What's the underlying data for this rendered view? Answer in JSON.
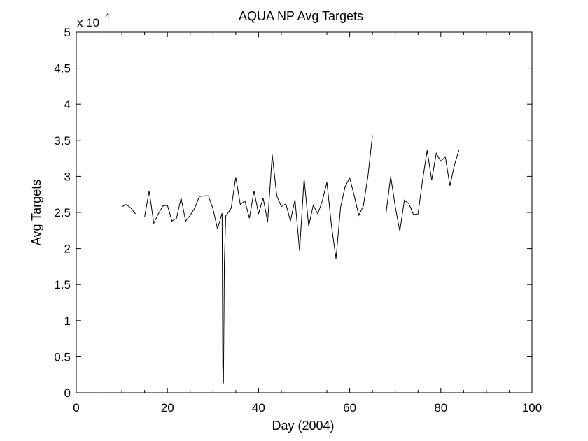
{
  "chart_data": {
    "type": "line",
    "title": "AQUA NP Avg Targets",
    "xlabel": "Day (2004)",
    "ylabel": "Avg Targets",
    "y_multiplier_label": "x 10",
    "y_multiplier_exponent": "4",
    "xlim": [
      0,
      100
    ],
    "ylim": [
      0,
      5
    ],
    "x_ticks": [
      0,
      20,
      40,
      60,
      80,
      100
    ],
    "x_tick_labels": [
      "0",
      "20",
      "40",
      "60",
      "80",
      "100"
    ],
    "y_ticks": [
      0,
      0.5,
      1,
      1.5,
      2,
      2.5,
      3,
      3.5,
      4,
      4.5,
      5
    ],
    "y_tick_labels": [
      "0",
      "0.5",
      "1",
      "1.5",
      "2",
      "2.5",
      "3",
      "3.5",
      "4",
      "4.5",
      "5"
    ],
    "grid": false,
    "line_color": "#000000",
    "series": [
      {
        "segments": [
          [
            [
              10,
              2.58
            ],
            [
              11,
              2.61
            ],
            [
              12,
              2.56
            ],
            [
              13,
              2.48
            ]
          ],
          [
            [
              15,
              2.44
            ],
            [
              16,
              2.8
            ],
            [
              17,
              2.35
            ],
            [
              18,
              2.48
            ],
            [
              19,
              2.59
            ],
            [
              20,
              2.6
            ],
            [
              21,
              2.38
            ],
            [
              22,
              2.42
            ],
            [
              23,
              2.7
            ],
            [
              24,
              2.38
            ],
            [
              25,
              2.46
            ],
            [
              26,
              2.56
            ],
            [
              27,
              2.72
            ],
            [
              28,
              2.73
            ],
            [
              29,
              2.73
            ],
            [
              30,
              2.55
            ],
            [
              31,
              2.27
            ],
            [
              32,
              2.49
            ],
            [
              32.15,
              0.35
            ],
            [
              32.3,
              0.13
            ],
            [
              32.5,
              1.8
            ],
            [
              32.8,
              2.45
            ],
            [
              34,
              2.56
            ],
            [
              35,
              2.99
            ],
            [
              36,
              2.61
            ],
            [
              37,
              2.66
            ],
            [
              38,
              2.42
            ],
            [
              39,
              2.8
            ],
            [
              40,
              2.48
            ],
            [
              41,
              2.7
            ],
            [
              42,
              2.37
            ],
            [
              43,
              3.3
            ],
            [
              44,
              2.73
            ],
            [
              45,
              2.58
            ],
            [
              46,
              2.62
            ],
            [
              47,
              2.38
            ],
            [
              48,
              2.68
            ],
            [
              49,
              1.97
            ],
            [
              50,
              2.97
            ],
            [
              51,
              2.31
            ],
            [
              52,
              2.6
            ],
            [
              53,
              2.48
            ],
            [
              54,
              2.66
            ],
            [
              55,
              2.92
            ],
            [
              56,
              2.32
            ],
            [
              57,
              1.86
            ],
            [
              58,
              2.57
            ],
            [
              59,
              2.86
            ],
            [
              60,
              2.98
            ],
            [
              61,
              2.73
            ],
            [
              62,
              2.46
            ],
            [
              63,
              2.59
            ],
            [
              64,
              3.0
            ],
            [
              65,
              3.57
            ]
          ],
          [
            [
              68,
              2.5
            ],
            [
              69,
              3.0
            ],
            [
              70,
              2.58
            ],
            [
              71,
              2.24
            ],
            [
              72,
              2.67
            ],
            [
              73,
              2.62
            ],
            [
              74,
              2.47
            ],
            [
              75,
              2.48
            ],
            [
              76,
              2.95
            ],
            [
              77,
              3.36
            ],
            [
              78,
              2.95
            ],
            [
              79,
              3.32
            ],
            [
              80,
              3.21
            ],
            [
              81,
              3.27
            ],
            [
              82,
              2.87
            ],
            [
              83,
              3.16
            ],
            [
              84,
              3.37
            ]
          ]
        ]
      }
    ]
  }
}
